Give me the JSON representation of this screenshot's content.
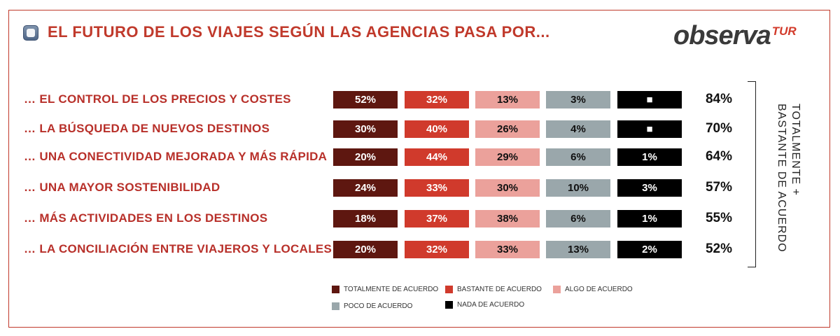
{
  "header": {
    "title": "EL FUTURO DE LOS VIAJES SEGÚN LAS AGENCIAS PASA POR...",
    "logo_main": "observa",
    "logo_sub": "TUR"
  },
  "side_label": {
    "line1": "TOTALMENTE +",
    "line2": "BASTANTE DE ACUERDO"
  },
  "colors": {
    "totalmente": "#5e1710",
    "bastante": "#d03a2c",
    "algo": "#eba19b",
    "poco": "#9aa7ab",
    "nada": "#000000",
    "accent": "#c0392b"
  },
  "chart_data": {
    "type": "table",
    "title": "EL FUTURO DE LOS VIAJES SEGÚN LAS AGENCIAS PASA POR...",
    "series": [
      {
        "name": "TOTALMENTE DE ACUERDO",
        "values": [
          52,
          30,
          20,
          24,
          18,
          20
        ]
      },
      {
        "name": "BASTANTE DE ACUERDO",
        "values": [
          32,
          40,
          44,
          33,
          37,
          32
        ]
      },
      {
        "name": "ALGO DE ACUERDO",
        "values": [
          13,
          26,
          29,
          30,
          38,
          33
        ]
      },
      {
        "name": "POCO DE ACUERDO",
        "values": [
          3,
          4,
          6,
          10,
          6,
          13
        ]
      },
      {
        "name": "NADA DE ACUERDO",
        "values": [
          null,
          null,
          1,
          3,
          1,
          2
        ]
      }
    ],
    "rows": [
      {
        "label": "… EL CONTROL DE LOS PRECIOS Y COSTES",
        "cells": [
          "52%",
          "32%",
          "13%",
          "3%",
          "■"
        ],
        "total": "84%"
      },
      {
        "label": "… LA BÚSQUEDA DE NUEVOS DESTINOS",
        "cells": [
          "30%",
          "40%",
          "26%",
          "4%",
          "■"
        ],
        "total": "70%"
      },
      {
        "label": "… UNA CONECTIVIDAD MEJORADA Y MÁS RÁPIDA",
        "cells": [
          "20%",
          "44%",
          "29%",
          "6%",
          "1%"
        ],
        "total": "64%"
      },
      {
        "label": "… UNA MAYOR SOSTENIBILIDAD",
        "cells": [
          "24%",
          "33%",
          "30%",
          "10%",
          "3%"
        ],
        "total": "57%"
      },
      {
        "label": "… MÁS ACTIVIDADES EN LOS DESTINOS",
        "cells": [
          "18%",
          "37%",
          "38%",
          "6%",
          "1%"
        ],
        "total": "55%"
      },
      {
        "label": "… LA CONCILIACIÓN ENTRE VIAJEROS Y LOCALES",
        "cells": [
          "20%",
          "32%",
          "33%",
          "13%",
          "2%"
        ],
        "total": "52%"
      }
    ],
    "legend": [
      {
        "label": "TOTALMENTE DE ACUERDO",
        "color": "#5e1710"
      },
      {
        "label": "BASTANTE DE ACUERDO",
        "color": "#d03a2c"
      },
      {
        "label": "ALGO DE ACUERDO",
        "color": "#eba19b"
      },
      {
        "label": "POCO DE ACUERDO",
        "color": "#9aa7ab"
      },
      {
        "label": "NADA DE ACUERDO",
        "color": "#000000"
      }
    ],
    "total_label": "TOTALMENTE + BASTANTE DE ACUERDO"
  }
}
